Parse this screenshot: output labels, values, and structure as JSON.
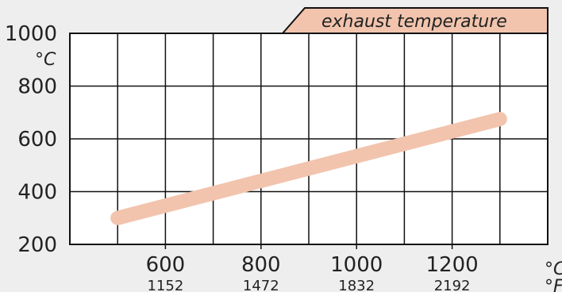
{
  "chart_data": {
    "type": "line",
    "title": "",
    "legend_label": "exhaust temperature",
    "x_unit": "°C",
    "x_secondary_unit": "°F",
    "y_unit": "°C",
    "xlim": [
      400,
      1400
    ],
    "ylim": [
      200,
      1000
    ],
    "x_ticks": [
      {
        "value": 600,
        "label": "600",
        "label_f": "1152"
      },
      {
        "value": 800,
        "label": "800",
        "label_f": "1472"
      },
      {
        "value": 1000,
        "label": "1000",
        "label_f": "1832"
      },
      {
        "value": 1200,
        "label": "1200",
        "label_f": "2192"
      }
    ],
    "y_ticks": [
      {
        "value": 200,
        "label": "200"
      },
      {
        "value": 400,
        "label": "400"
      },
      {
        "value": 600,
        "label": "600"
      },
      {
        "value": 800,
        "label": "800"
      },
      {
        "value": 1000,
        "label": "1000"
      }
    ],
    "grid": true,
    "series": [
      {
        "name": "exhaust temperature",
        "color": "#f2c4ad",
        "x": [
          500,
          1300
        ],
        "y": [
          300,
          675
        ]
      }
    ],
    "colors": {
      "plot_bg": "#ffffff",
      "page_bg": "#eeeeee",
      "grid": "#111111",
      "tab_fill": "#f2c4ad",
      "line": "#f2c4ad"
    }
  }
}
